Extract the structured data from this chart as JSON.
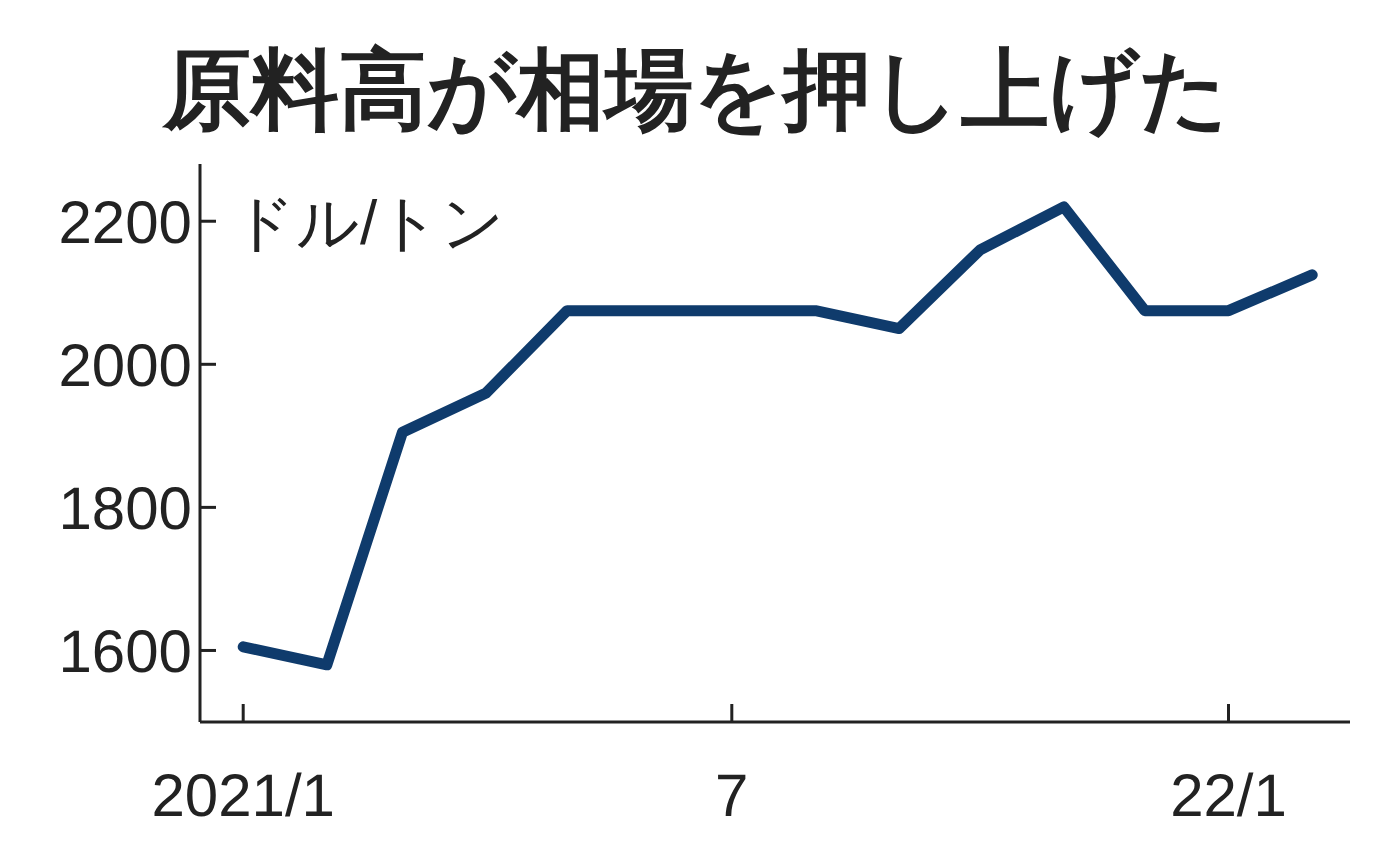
{
  "chart_data": {
    "type": "line",
    "title": "原料高が相場を押し上げた",
    "ylabel": "ドル/トン",
    "x": [
      "2021-01",
      "2021-02",
      "2021-03",
      "2021-04",
      "2021-05",
      "2021-06",
      "2021-07",
      "2021-08",
      "2021-09",
      "2021-10",
      "2021-11",
      "2021-12",
      "2022-01",
      "2022-02"
    ],
    "series": [
      {
        "color": "#0f3b6c",
        "values": [
          1605,
          1580,
          1905,
          1960,
          2075,
          2075,
          2075,
          2075,
          2050,
          2160,
          2220,
          2075,
          2075,
          2125
        ]
      }
    ],
    "xlim": [
      "2020-12-16",
      "2022-02-15"
    ],
    "xticks": [
      {
        "value": "2021-01",
        "label": "2021/1"
      },
      {
        "value": "2021-07",
        "label": "7"
      },
      {
        "value": "2022-01",
        "label": "22/1"
      }
    ],
    "ylim": [
      1500,
      2280
    ],
    "yticks": [
      1600,
      1800,
      2000,
      2200
    ]
  }
}
